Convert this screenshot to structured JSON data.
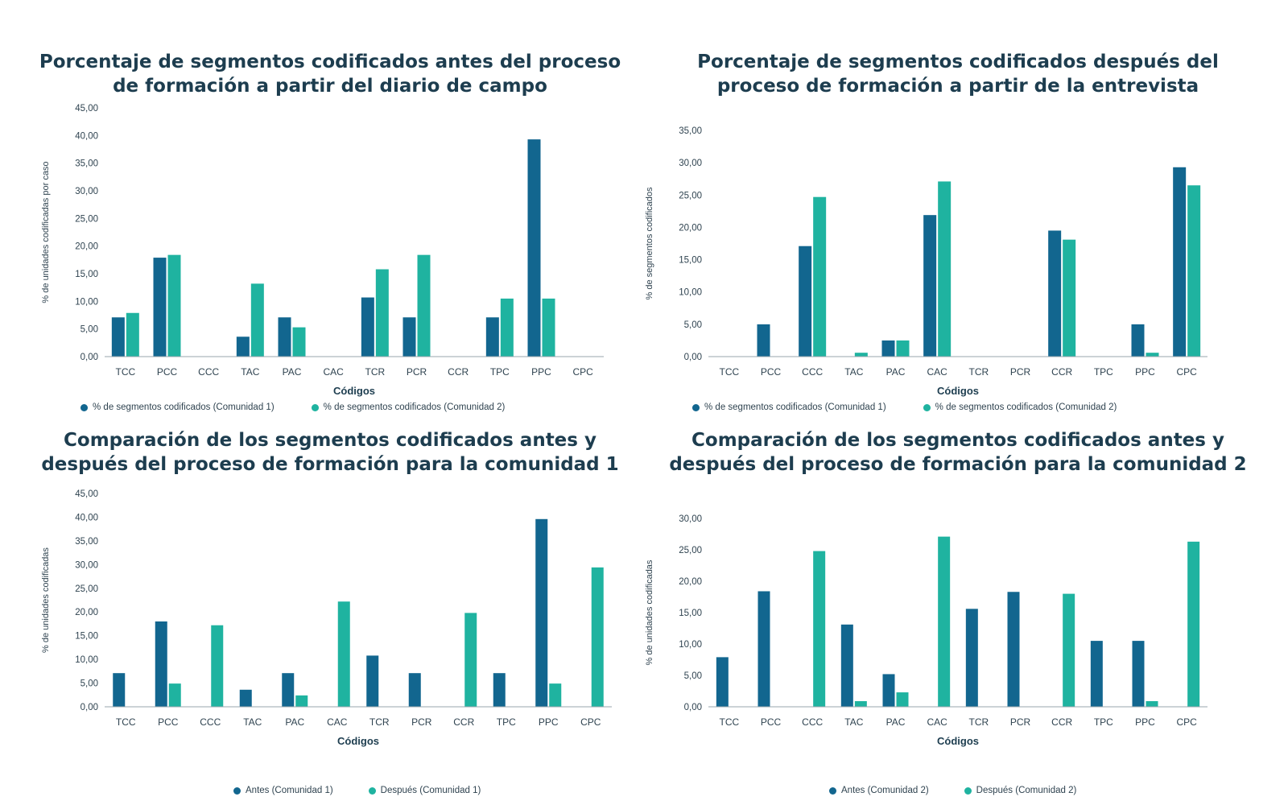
{
  "colors": {
    "series1": "#12668f",
    "series2": "#1fb3a0",
    "axis": "#9aa5ad",
    "text": "#2f4350"
  },
  "chart_data": [
    {
      "type": "bar",
      "title_lines": [
        "Porcentaje de segmentos codificados antes del proceso",
        "de formación a partir del diario de campo"
      ],
      "xlabel": "Códigos",
      "ylabel": "% de unidades codificadas por caso",
      "categories": [
        "TCC",
        "PCC",
        "CCC",
        "TAC",
        "PAC",
        "CAC",
        "TCR",
        "PCR",
        "CCR",
        "TPC",
        "PPC",
        "CPC"
      ],
      "ylim": [
        0,
        45
      ],
      "yticks": [
        "0,00",
        "5,00",
        "10,00",
        "15,00",
        "20,00",
        "25,00",
        "30,00",
        "35,00",
        "40,00",
        "45,00"
      ],
      "series": [
        {
          "name": "% de segmentos codificados (Comunidad 1)",
          "values": [
            7.1,
            17.9,
            0,
            3.6,
            7.1,
            0,
            10.7,
            7.1,
            0,
            7.1,
            39.3,
            0
          ]
        },
        {
          "name": "% de segmentos codificados (Comunidad 2)",
          "values": [
            7.9,
            18.4,
            0,
            13.2,
            5.3,
            0,
            15.8,
            18.4,
            0,
            10.5,
            10.5,
            0
          ]
        }
      ],
      "legend": "bottom",
      "grid": false
    },
    {
      "type": "bar",
      "title_lines": [
        "Porcentaje de segmentos codificados después del",
        "proceso de formación a partir de la entrevista"
      ],
      "xlabel": "Códigos",
      "ylabel": "% de segmentos codificados",
      "categories": [
        "TCC",
        "PCC",
        "CCC",
        "TAC",
        "PAC",
        "CAC",
        "TCR",
        "PCR",
        "CCR",
        "TPC",
        "PPC",
        "CPC"
      ],
      "ylim": [
        0,
        35
      ],
      "yticks": [
        "0,00",
        "5,00",
        "10,00",
        "15,00",
        "20,00",
        "25,00",
        "30,00",
        "35,00"
      ],
      "series": [
        {
          "name": "% de segmentos codificados (Comunidad 1)",
          "values": [
            0,
            5.0,
            17.1,
            0,
            2.5,
            21.9,
            0,
            0,
            19.5,
            0,
            5.0,
            29.3
          ]
        },
        {
          "name": "% de segmentos codificados (Comunidad 2)",
          "values": [
            0,
            0,
            24.7,
            0.6,
            2.5,
            27.1,
            0,
            0,
            18.1,
            0,
            0.6,
            26.5
          ]
        }
      ],
      "legend": "bottom",
      "grid": false
    },
    {
      "type": "bar",
      "title_lines": [
        "Comparación de los segmentos codificados antes y",
        "después del proceso de formación para la comunidad 1"
      ],
      "xlabel": "Códigos",
      "ylabel": "% de unidades codificadas",
      "categories": [
        "TCC",
        "PCC",
        "CCC",
        "TAC",
        "PAC",
        "CAC",
        "TCR",
        "PCR",
        "CCR",
        "TPC",
        "PPC",
        "CPC"
      ],
      "ylim": [
        0,
        45
      ],
      "yticks": [
        "0,00",
        "5,00",
        "10,00",
        "15,00",
        "20,00",
        "25,00",
        "30,00",
        "35,00",
        "40,00",
        "45,00"
      ],
      "series": [
        {
          "name": "Antes (Comunidad 1)",
          "values": [
            7.1,
            18.0,
            0,
            3.6,
            7.1,
            0,
            10.8,
            7.1,
            0,
            7.1,
            39.6,
            0
          ]
        },
        {
          "name": "Después (Comunidad 1)",
          "values": [
            0,
            4.9,
            17.2,
            0,
            2.4,
            22.2,
            0,
            0,
            19.8,
            0,
            4.9,
            29.4
          ]
        }
      ],
      "legend": "bottom",
      "grid": false
    },
    {
      "type": "bar",
      "title_lines": [
        "Comparación de los segmentos codificados antes y",
        "después del proceso de formación para la comunidad 2"
      ],
      "xlabel": "Códigos",
      "ylabel": "% de unidades codificadas",
      "categories": [
        "TCC",
        "PCC",
        "CCC",
        "TAC",
        "PAC",
        "CAC",
        "TCR",
        "PCR",
        "CCR",
        "TPC",
        "PPC",
        "CPC"
      ],
      "ylim": [
        0,
        30
      ],
      "yticks": [
        "0,00",
        "5,00",
        "10,00",
        "15,00",
        "20,00",
        "25,00",
        "30,00"
      ],
      "series": [
        {
          "name": "Antes (Comunidad 2)",
          "values": [
            7.9,
            18.4,
            0,
            13.1,
            5.2,
            0,
            15.6,
            18.3,
            0,
            10.5,
            10.5,
            0
          ]
        },
        {
          "name": "Después (Comunidad 2)",
          "values": [
            0,
            0,
            24.8,
            0.9,
            2.3,
            27.1,
            0,
            0,
            18.0,
            0,
            0.9,
            26.3
          ]
        }
      ],
      "legend": "bottom",
      "grid": false
    }
  ]
}
